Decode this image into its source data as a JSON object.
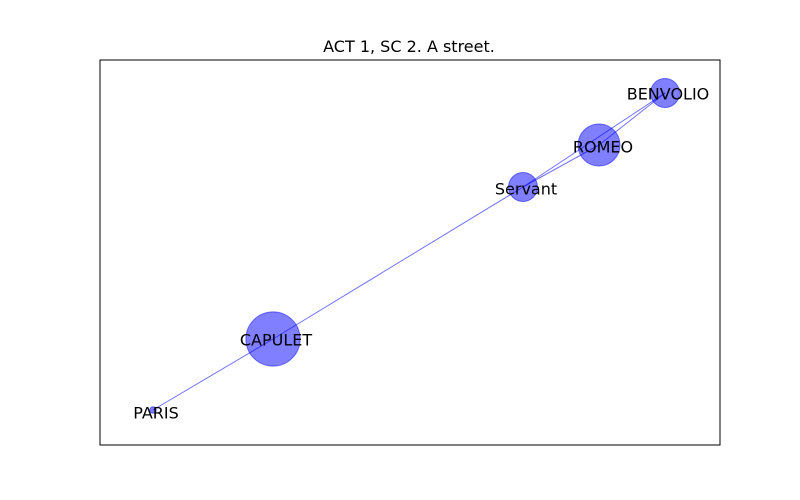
{
  "figure": {
    "title": "ACT 1, SC 2. A street."
  },
  "colors": {
    "node_fill": "#0000ff",
    "node_opacity": 0.5,
    "edge": "#0000ff",
    "edge_opacity": 0.55,
    "frame": "#000000",
    "background": "#ffffff"
  },
  "graph": {
    "nodes": [
      {
        "id": "BENVOLIO",
        "label": "BENVOLIO",
        "weight": 1.0
      },
      {
        "id": "ROMEO",
        "label": "ROMEO",
        "weight": 2.1
      },
      {
        "id": "Servant",
        "label": "Servant",
        "weight": 1.0
      },
      {
        "id": "CAPULET",
        "label": "CAPULET",
        "weight": 3.5
      },
      {
        "id": "PARIS",
        "label": "PARIS",
        "weight": 0.05
      }
    ],
    "edges": [
      {
        "source": "PARIS",
        "target": "CAPULET"
      },
      {
        "source": "CAPULET",
        "target": "Servant"
      },
      {
        "source": "Servant",
        "target": "ROMEO"
      },
      {
        "source": "Servant",
        "target": "BENVOLIO"
      },
      {
        "source": "ROMEO",
        "target": "BENVOLIO"
      }
    ]
  }
}
